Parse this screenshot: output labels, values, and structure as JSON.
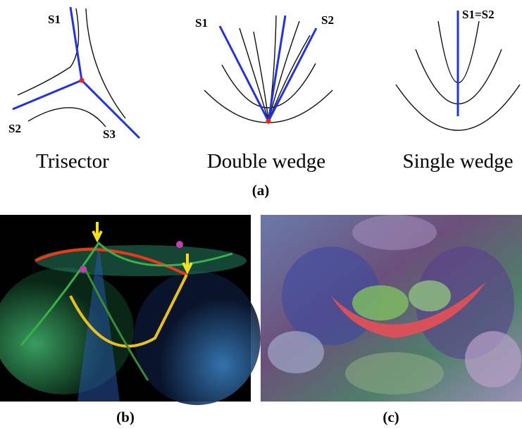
{
  "panel_a": {
    "diagrams": [
      {
        "name": "Trisector",
        "separatrices": [
          "S1",
          "S2",
          "S3"
        ]
      },
      {
        "name": "Double wedge",
        "separatrices": [
          "S1",
          "S2"
        ]
      },
      {
        "name": "Single wedge",
        "separatrices": [
          "S1=S2"
        ]
      }
    ],
    "caption": "(a)"
  },
  "panel_b": {
    "caption": "(b)"
  },
  "panel_c": {
    "caption": "(c)"
  }
}
